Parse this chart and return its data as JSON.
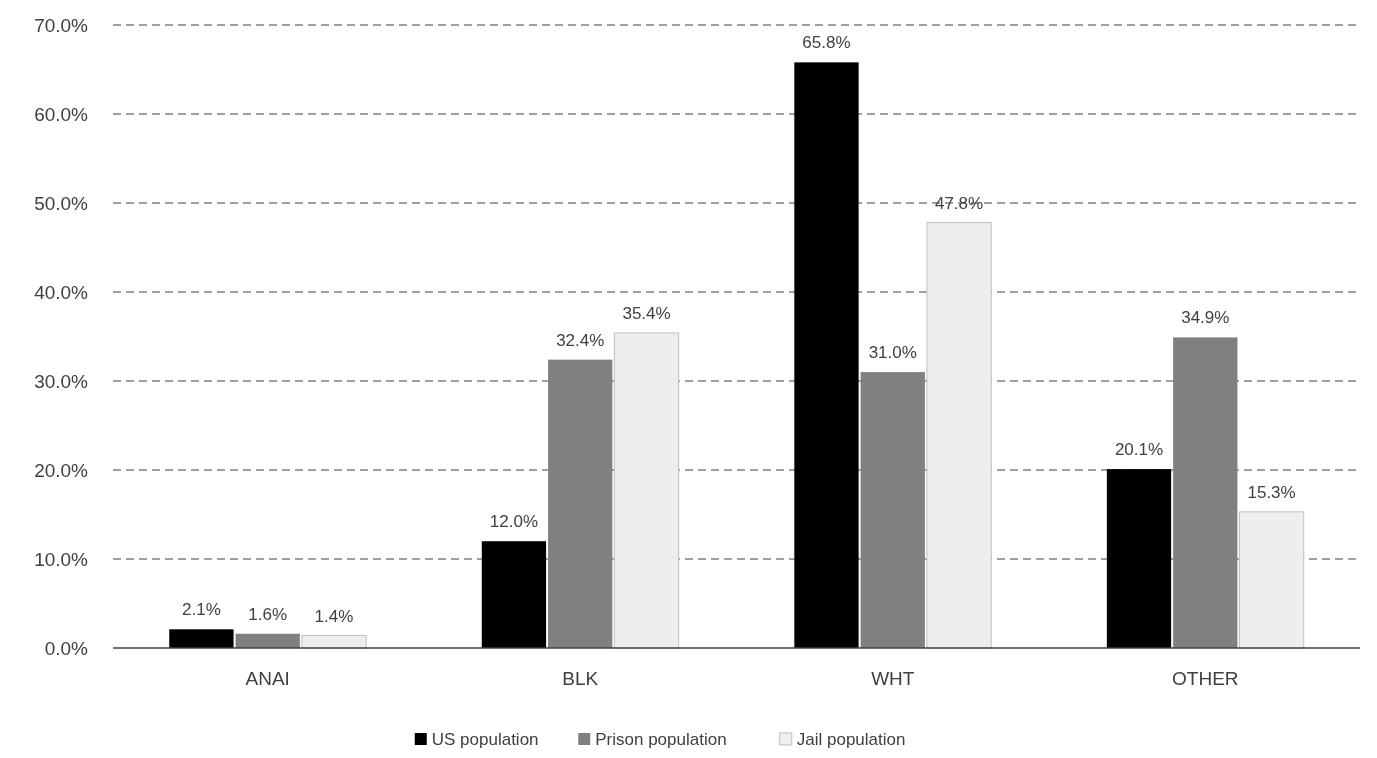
{
  "chart_data": {
    "type": "bar",
    "categories": [
      "ANAI",
      "BLK",
      "WHT",
      "OTHER"
    ],
    "series": [
      {
        "name": "US population",
        "color": "#000000",
        "values": [
          2.1,
          12.0,
          65.8,
          20.1
        ],
        "value_labels": [
          "2.1%",
          "12.0%",
          "65.8%",
          "20.1%"
        ]
      },
      {
        "name": "Prison population",
        "color": "#808080",
        "values": [
          1.6,
          32.4,
          31.0,
          34.9
        ],
        "value_labels": [
          "1.6%",
          "32.4%",
          "31.0%",
          "34.9%"
        ]
      },
      {
        "name": "Jail population",
        "color": "#eeeeee",
        "values": [
          1.4,
          35.4,
          47.8,
          15.3
        ],
        "value_labels": [
          "1.4%",
          "35.4%",
          "47.8%",
          "15.3%"
        ]
      }
    ],
    "ylim": [
      0,
      70
    ],
    "yticks": [
      {
        "value": 0,
        "label": "0.0%"
      },
      {
        "value": 10,
        "label": "10.0%"
      },
      {
        "value": 20,
        "label": "20.0%"
      },
      {
        "value": 30,
        "label": "30.0%"
      },
      {
        "value": 40,
        "label": "40.0%"
      },
      {
        "value": 50,
        "label": "50.0%"
      },
      {
        "value": 60,
        "label": "60.0%"
      },
      {
        "value": 70,
        "label": "70.0%"
      }
    ],
    "grid": "y",
    "legend": "bottom"
  }
}
